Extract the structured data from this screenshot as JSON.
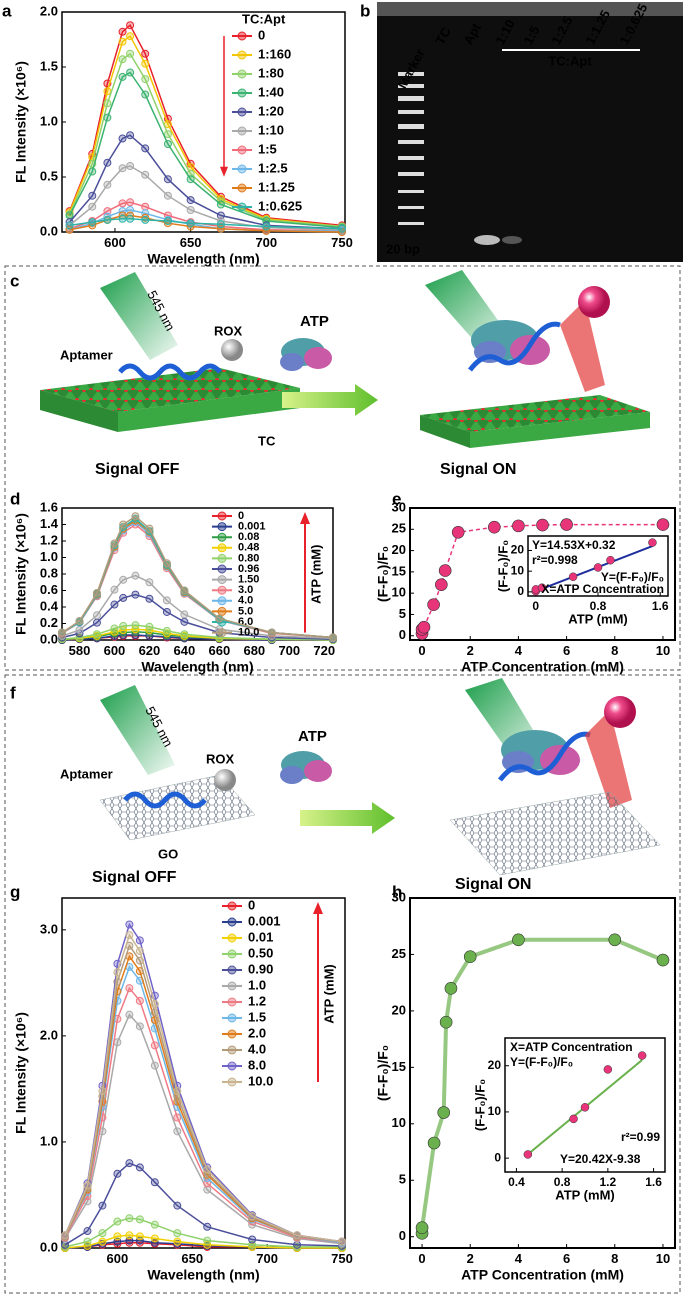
{
  "panel_labels": [
    "a",
    "b",
    "c",
    "d",
    "e",
    "f",
    "g",
    "h"
  ],
  "gel": {
    "lanes": [
      "Marker",
      "TC",
      "Apt",
      "1:10",
      "1:5",
      "1:2.5",
      "1:1.25",
      "1:0.625"
    ],
    "group_label": "TC:Apt",
    "size_label": "20 bp"
  },
  "diagram_c": {
    "wavelength": "545 nm",
    "aptamer": "Aptamer",
    "rox": "ROX",
    "target": "ATP",
    "substrate": "TC",
    "off": "Signal OFF",
    "on": "Signal ON"
  },
  "diagram_f": {
    "wavelength": "545 nm",
    "aptamer": "Aptamer",
    "rox": "ROX",
    "target": "ATP",
    "substrate": "GO",
    "off": "Signal OFF",
    "on": "Signal ON"
  },
  "chart_data": [
    {
      "type": "line",
      "xlabel": "Wavelength (nm)",
      "ylabel": "FL Intensity (×10⁶)",
      "legend_title": "TC:Apt",
      "xlim": [
        565,
        752
      ],
      "ylim": [
        0,
        2.0
      ],
      "xticks": [
        600,
        650,
        700,
        750
      ],
      "yticks": [
        {
          "value": 0,
          "label": "0.0"
        },
        0.5,
        {
          "value": 1,
          "label": "1.0"
        },
        1.5,
        {
          "value": 2,
          "label": "2.0"
        }
      ],
      "x": [
        570,
        585,
        595,
        605,
        610,
        620,
        635,
        650,
        670,
        700,
        750
      ],
      "series": [
        {
          "name": "0",
          "color": "#e8202a",
          "values": [
            0.19,
            0.71,
            1.35,
            1.82,
            1.88,
            1.62,
            1.03,
            0.62,
            0.32,
            0.13,
            0.06
          ]
        },
        {
          "name": "1:160",
          "color": "#f2c500",
          "values": [
            0.18,
            0.68,
            1.28,
            1.73,
            1.78,
            1.53,
            0.98,
            0.59,
            0.3,
            0.12,
            0.05
          ]
        },
        {
          "name": "1:80",
          "color": "#8fd16a",
          "values": [
            0.16,
            0.62,
            1.17,
            1.57,
            1.62,
            1.39,
            0.89,
            0.53,
            0.28,
            0.11,
            0.05
          ]
        },
        {
          "name": "1:40",
          "color": "#3cb371",
          "values": [
            0.15,
            0.55,
            1.04,
            1.41,
            1.45,
            1.25,
            0.8,
            0.48,
            0.25,
            0.1,
            0.04
          ]
        },
        {
          "name": "1:20",
          "color": "#4b4f9a",
          "values": [
            0.09,
            0.33,
            0.63,
            0.85,
            0.88,
            0.76,
            0.48,
            0.29,
            0.15,
            0.06,
            0.03
          ]
        },
        {
          "name": "1:10",
          "color": "#a9a9a9",
          "values": [
            0.06,
            0.23,
            0.43,
            0.58,
            0.6,
            0.52,
            0.33,
            0.2,
            0.1,
            0.04,
            0.02
          ]
        },
        {
          "name": "1:5",
          "color": "#f06c7a",
          "values": [
            0.03,
            0.1,
            0.19,
            0.26,
            0.27,
            0.23,
            0.15,
            0.09,
            0.05,
            0.02,
            0.01
          ]
        },
        {
          "name": "1:2.5",
          "color": "#6cb6e8",
          "values": [
            0.02,
            0.08,
            0.14,
            0.19,
            0.2,
            0.17,
            0.11,
            0.07,
            0.03,
            0.01,
            0.01
          ]
        },
        {
          "name": "1:1.25",
          "color": "#e07b1a",
          "values": [
            0.02,
            0.06,
            0.11,
            0.15,
            0.15,
            0.13,
            0.08,
            0.05,
            0.03,
            0.01,
            0.0
          ]
        },
        {
          "name": "1:0.625",
          "color": "#2fb3a8",
          "values": [
            0.06,
            0.09,
            0.11,
            0.12,
            0.12,
            0.11,
            0.1,
            0.08,
            0.07,
            0.05,
            0.03
          ]
        }
      ]
    },
    {
      "type": "line",
      "xlabel": "Wavelength (nm)",
      "ylabel": "FL Intensity (×10⁶)",
      "legend_arrow_label": "ATP (mM)",
      "xlim": [
        570,
        725
      ],
      "ylim": [
        0,
        1.6
      ],
      "xticks": [
        580,
        600,
        620,
        640,
        660,
        680,
        700,
        720
      ],
      "yticks": [
        {
          "value": 0,
          "label": "0.0"
        },
        0.2,
        0.4,
        0.6,
        0.8,
        {
          "value": 1,
          "label": "1.0"
        },
        1.2,
        1.4,
        1.6
      ],
      "x": [
        570,
        580,
        590,
        600,
        605,
        612,
        620,
        630,
        640,
        660,
        690,
        725
      ],
      "series": [
        {
          "name": "0",
          "color": "#e8202a",
          "values": [
            0.0,
            0.01,
            0.02,
            0.04,
            0.05,
            0.05,
            0.05,
            0.03,
            0.02,
            0.01,
            0.0,
            0.0
          ]
        },
        {
          "name": "0.001",
          "color": "#2b3f8f",
          "values": [
            0.0,
            0.01,
            0.02,
            0.05,
            0.06,
            0.06,
            0.05,
            0.04,
            0.02,
            0.01,
            0.0,
            0.0
          ]
        },
        {
          "name": "0.08",
          "color": "#2e9e45",
          "values": [
            0.01,
            0.02,
            0.04,
            0.08,
            0.09,
            0.1,
            0.09,
            0.06,
            0.04,
            0.02,
            0.01,
            0.0
          ]
        },
        {
          "name": "0.48",
          "color": "#f2d000",
          "values": [
            0.01,
            0.02,
            0.05,
            0.1,
            0.12,
            0.13,
            0.12,
            0.08,
            0.05,
            0.02,
            0.01,
            0.0
          ]
        },
        {
          "name": "0.80",
          "color": "#8fd16a",
          "values": [
            0.01,
            0.03,
            0.07,
            0.14,
            0.17,
            0.18,
            0.16,
            0.11,
            0.07,
            0.03,
            0.01,
            0.0
          ]
        },
        {
          "name": "0.96",
          "color": "#4b4f9a",
          "values": [
            0.03,
            0.08,
            0.21,
            0.43,
            0.51,
            0.55,
            0.5,
            0.34,
            0.22,
            0.09,
            0.03,
            0.01
          ]
        },
        {
          "name": "1.50",
          "color": "#a9a9a9",
          "values": [
            0.05,
            0.12,
            0.3,
            0.61,
            0.73,
            0.78,
            0.7,
            0.48,
            0.31,
            0.13,
            0.05,
            0.02
          ]
        },
        {
          "name": "3.0",
          "color": "#f07a84",
          "values": [
            0.08,
            0.21,
            0.53,
            1.09,
            1.3,
            1.4,
            1.26,
            0.87,
            0.56,
            0.24,
            0.08,
            0.03
          ]
        },
        {
          "name": "4.0",
          "color": "#6cb6e8",
          "values": [
            0.09,
            0.21,
            0.54,
            1.12,
            1.33,
            1.43,
            1.29,
            0.89,
            0.57,
            0.24,
            0.09,
            0.03
          ]
        },
        {
          "name": "5.0",
          "color": "#e07b1a",
          "values": [
            0.09,
            0.22,
            0.55,
            1.13,
            1.35,
            1.45,
            1.31,
            0.9,
            0.58,
            0.25,
            0.09,
            0.03
          ]
        },
        {
          "name": "6.0",
          "color": "#2fb3a8",
          "values": [
            0.09,
            0.22,
            0.56,
            1.15,
            1.37,
            1.47,
            1.32,
            0.91,
            0.59,
            0.25,
            0.09,
            0.03
          ]
        },
        {
          "name": "10.0",
          "color": "#b39b7a",
          "values": [
            0.09,
            0.23,
            0.57,
            1.17,
            1.4,
            1.5,
            1.35,
            0.93,
            0.6,
            0.26,
            0.09,
            0.03
          ]
        }
      ]
    },
    {
      "type": "scatter",
      "xlabel": "ATP Concentration (mM)",
      "ylabel": "(F-F₀)/F₀",
      "color": "#e8357a",
      "line_style": "dashed",
      "xlim": [
        -0.5,
        10.5
      ],
      "ylim": [
        -1,
        30
      ],
      "xticks": [
        0,
        2,
        4,
        6,
        8,
        10
      ],
      "yticks": [
        0,
        5,
        10,
        15,
        20,
        25,
        30
      ],
      "x": [
        0,
        0.001,
        0.08,
        0.48,
        0.8,
        0.96,
        1.5,
        3,
        4,
        5,
        6,
        10
      ],
      "values": [
        0.5,
        1.5,
        2,
        7.3,
        12,
        15.3,
        24.3,
        25.5,
        25.8,
        26,
        26.1,
        26.1
      ],
      "inset": {
        "xlabel": "ATP (mM)",
        "ylabel": "(F-F₀)/F₀",
        "equation": "Y=14.53X+0.32",
        "r2": "r²=0.998",
        "legend_y": "Y=(F-F₀)/F₀",
        "legend_x": "X=ATP Concentration",
        "xlim": [
          -0.1,
          1.7
        ],
        "ylim": [
          -2,
          27
        ],
        "xticks": [
          0,
          0.8,
          1.6
        ],
        "yticks": [
          0,
          10,
          20
        ],
        "x": [
          0,
          0.001,
          0.08,
          0.48,
          0.8,
          0.96,
          1.5
        ],
        "values": [
          0.3,
          1.2,
          2.0,
          7.3,
          11.8,
          15.3,
          23.8
        ],
        "color": "#e8357a",
        "fit": {
          "slope": 14.53,
          "intercept": 0.32,
          "color": "#1d2f9e"
        }
      }
    },
    {
      "type": "line",
      "xlabel": "Wavelength (nm)",
      "ylabel": "FL Intensity (×10⁶)",
      "legend_arrow_label": "ATP (mM)",
      "xlim": [
        563,
        752
      ],
      "ylim": [
        0,
        3.3
      ],
      "xticks": [
        600,
        650,
        700,
        750
      ],
      "yticks": [
        {
          "value": 0,
          "label": "0.0"
        },
        {
          "value": 1,
          "label": "1.0"
        },
        {
          "value": 2,
          "label": "2.0"
        },
        {
          "value": 3,
          "label": "3.0"
        }
      ],
      "x": [
        565,
        580,
        590,
        600,
        608,
        615,
        625,
        640,
        660,
        690,
        720,
        750
      ],
      "series": [
        {
          "name": "0",
          "color": "#e8202a",
          "values": [
            0.0,
            0.01,
            0.03,
            0.04,
            0.05,
            0.05,
            0.04,
            0.03,
            0.01,
            0.01,
            0.0,
            0.0
          ]
        },
        {
          "name": "0.001",
          "color": "#2b3f8f",
          "values": [
            0.0,
            0.01,
            0.04,
            0.06,
            0.07,
            0.07,
            0.05,
            0.04,
            0.02,
            0.01,
            0.0,
            0.0
          ]
        },
        {
          "name": "0.01",
          "color": "#f2d000",
          "values": [
            0.0,
            0.02,
            0.06,
            0.11,
            0.12,
            0.11,
            0.09,
            0.06,
            0.03,
            0.01,
            0.0,
            0.0
          ]
        },
        {
          "name": "0.50",
          "color": "#8fd16a",
          "values": [
            0.01,
            0.06,
            0.14,
            0.25,
            0.28,
            0.27,
            0.22,
            0.14,
            0.07,
            0.03,
            0.01,
            0.01
          ]
        },
        {
          "name": "0.90",
          "color": "#4b4f9a",
          "values": [
            0.03,
            0.16,
            0.4,
            0.7,
            0.8,
            0.76,
            0.62,
            0.4,
            0.2,
            0.08,
            0.03,
            0.02
          ]
        },
        {
          "name": "1.0",
          "color": "#a9a9a9",
          "values": [
            0.09,
            0.44,
            1.1,
            1.94,
            2.2,
            2.09,
            1.72,
            1.1,
            0.55,
            0.22,
            0.09,
            0.04
          ]
        },
        {
          "name": "1.2",
          "color": "#f07a84",
          "values": [
            0.1,
            0.49,
            1.23,
            2.16,
            2.45,
            2.33,
            1.91,
            1.23,
            0.61,
            0.25,
            0.1,
            0.05
          ]
        },
        {
          "name": "1.5",
          "color": "#6cb6e8",
          "values": [
            0.11,
            0.53,
            1.33,
            2.33,
            2.65,
            2.52,
            2.07,
            1.33,
            0.66,
            0.27,
            0.11,
            0.05
          ]
        },
        {
          "name": "2.0",
          "color": "#e07b1a",
          "values": [
            0.11,
            0.55,
            1.38,
            2.42,
            2.75,
            2.61,
            2.15,
            1.38,
            0.69,
            0.28,
            0.11,
            0.06
          ]
        },
        {
          "name": "4.0",
          "color": "#b39b7a",
          "values": [
            0.11,
            0.57,
            1.43,
            2.51,
            2.85,
            2.71,
            2.22,
            1.43,
            0.71,
            0.29,
            0.11,
            0.06
          ]
        },
        {
          "name": "8.0",
          "color": "#6f63c9",
          "values": [
            0.12,
            0.61,
            1.53,
            2.68,
            3.05,
            2.9,
            2.38,
            1.53,
            0.76,
            0.31,
            0.12,
            0.06
          ]
        },
        {
          "name": "10.0",
          "color": "#c8b48e",
          "values": [
            0.12,
            0.59,
            1.48,
            2.6,
            2.95,
            2.8,
            2.3,
            1.48,
            0.74,
            0.3,
            0.12,
            0.06
          ]
        }
      ]
    },
    {
      "type": "scatter",
      "xlabel": "ATP Concentration (mM)",
      "ylabel": "(F-F₀)/F₀",
      "color": "#6ab04c",
      "line_style": "solid",
      "xlim": [
        -0.5,
        10.5
      ],
      "ylim": [
        -1,
        30
      ],
      "xticks": [
        0,
        2,
        4,
        6,
        8,
        10
      ],
      "yticks": [
        0,
        5,
        10,
        15,
        20,
        25,
        30
      ],
      "x": [
        0,
        0.001,
        0.5,
        0.9,
        1.0,
        1.2,
        2,
        4,
        8,
        10
      ],
      "values": [
        0.3,
        0.8,
        8.3,
        11,
        19,
        22,
        24.8,
        26.3,
        26.3,
        24.5
      ],
      "inset": {
        "xlabel": "ATP (mM)",
        "ylabel": "(F-F₀)/F₀",
        "equation": "Y=20.42X-9.38",
        "r2": "r²=0.99",
        "legend_y": "Y=(F-F₀)/F₀",
        "legend_x": "X=ATP Concentration",
        "xlim": [
          0.3,
          1.7
        ],
        "ylim": [
          -3,
          26
        ],
        "xticks": [
          0.4,
          0.8,
          1.2,
          1.6
        ],
        "yticks": [
          0,
          10,
          20
        ],
        "x": [
          0.5,
          0.9,
          1.0,
          1.2,
          1.5
        ],
        "values": [
          0.8,
          8.5,
          11,
          19.2,
          22.2
        ],
        "color": "#e8357a",
        "fit": {
          "slope": 20.42,
          "intercept": -9.38,
          "color": "#6ab04c"
        }
      }
    }
  ]
}
